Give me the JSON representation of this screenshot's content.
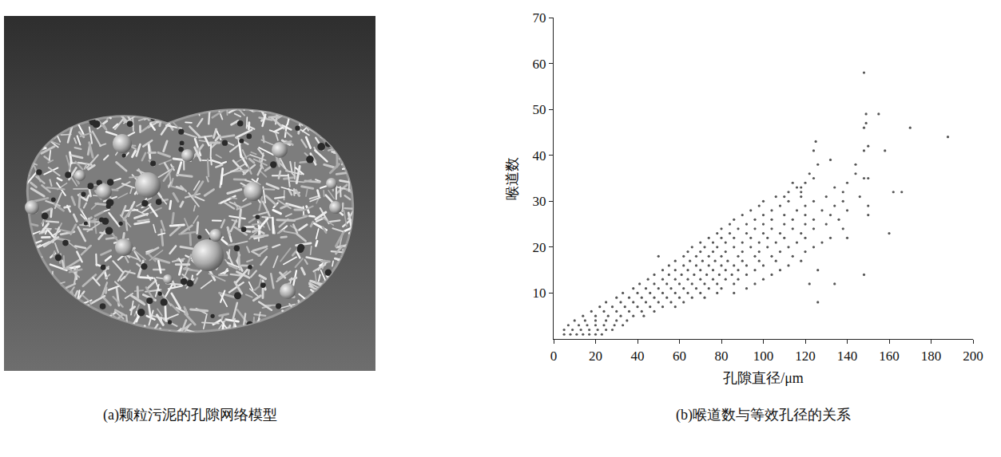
{
  "image_panel": {
    "caption": "(a)颗粒污泥的孔隙网络模型"
  },
  "chart_data": {
    "type": "scatter",
    "caption": "(b)喉道数与等效孔径的关系",
    "x_label": "孔隙直径/μm",
    "y_label": "喉道数",
    "color": "#555555",
    "marker": "dot",
    "grid": false,
    "xlim": [
      0,
      200
    ],
    "ylim": [
      0,
      70
    ],
    "xticks": [
      0,
      20,
      40,
      60,
      80,
      100,
      120,
      140,
      160,
      180,
      200
    ],
    "yticks": [
      10,
      20,
      30,
      40,
      50,
      60,
      70
    ],
    "x": [
      5,
      8,
      11,
      14,
      17,
      20,
      23,
      5,
      9,
      13,
      17,
      21,
      25,
      28,
      7,
      12,
      16,
      20,
      24,
      29,
      33,
      10,
      15,
      20,
      25,
      30,
      35,
      14,
      20,
      26,
      32,
      38,
      43,
      18,
      24,
      30,
      36,
      42,
      48,
      22,
      28,
      34,
      40,
      46,
      52,
      58,
      25,
      32,
      38,
      44,
      50,
      56,
      62,
      126,
      30,
      36,
      42,
      48,
      54,
      60,
      66,
      72,
      33,
      40,
      46,
      52,
      58,
      64,
      70,
      78,
      86,
      38,
      44,
      50,
      56,
      62,
      68,
      74,
      80,
      92,
      41,
      48,
      54,
      60,
      66,
      72,
      78,
      86,
      96,
      122,
      134,
      45,
      52,
      58,
      64,
      70,
      76,
      82,
      88,
      100,
      48,
      55,
      61,
      67,
      73,
      79,
      85,
      92,
      104,
      148,
      52,
      58,
      64,
      70,
      76,
      82,
      88,
      96,
      108,
      126,
      55,
      62,
      68,
      74,
      80,
      86,
      92,
      100,
      112,
      58,
      65,
      71,
      77,
      83,
      90,
      98,
      106,
      118,
      50,
      62,
      68,
      74,
      80,
      88,
      96,
      104,
      114,
      64,
      70,
      76,
      82,
      90,
      98,
      108,
      120,
      66,
      72,
      78,
      86,
      94,
      102,
      112,
      124,
      70,
      76,
      82,
      90,
      98,
      106,
      116,
      128,
      74,
      80,
      86,
      94,
      102,
      110,
      120,
      132,
      140,
      78,
      84,
      92,
      100,
      108,
      118,
      160,
      80,
      88,
      96,
      104,
      114,
      124,
      138,
      84,
      92,
      100,
      110,
      120,
      130,
      86,
      96,
      104,
      114,
      124,
      136,
      90,
      100,
      110,
      120,
      132,
      150,
      94,
      104,
      116,
      128,
      140,
      98,
      108,
      120,
      134,
      150,
      100,
      112,
      124,
      138,
      106,
      110,
      118,
      130,
      146,
      112,
      118,
      138,
      162,
      166,
      116,
      118,
      134,
      114,
      120,
      140,
      124,
      148,
      150,
      122,
      144,
      126,
      144,
      132,
      124,
      148,
      158,
      150,
      125,
      188,
      148,
      170,
      149,
      149,
      155,
      148
    ],
    "values": [
      1,
      1,
      1,
      1,
      1,
      1,
      1,
      2,
      2,
      2,
      2,
      2,
      2,
      2,
      3,
      3,
      3,
      3,
      3,
      3,
      3,
      4,
      4,
      4,
      4,
      4,
      4,
      5,
      5,
      5,
      5,
      5,
      5,
      6,
      6,
      6,
      6,
      6,
      6,
      7,
      7,
      7,
      7,
      7,
      7,
      7,
      8,
      8,
      8,
      8,
      8,
      8,
      8,
      8,
      9,
      9,
      9,
      9,
      9,
      9,
      9,
      9,
      10,
      10,
      10,
      10,
      10,
      10,
      10,
      10,
      10,
      11,
      11,
      11,
      11,
      11,
      11,
      11,
      11,
      11,
      12,
      12,
      12,
      12,
      12,
      12,
      12,
      12,
      12,
      12,
      12,
      13,
      13,
      13,
      13,
      13,
      13,
      13,
      13,
      13,
      14,
      14,
      14,
      14,
      14,
      14,
      14,
      14,
      14,
      14,
      15,
      15,
      15,
      15,
      15,
      15,
      15,
      15,
      15,
      15,
      16,
      16,
      16,
      16,
      16,
      16,
      16,
      16,
      16,
      17,
      17,
      17,
      17,
      17,
      17,
      17,
      17,
      17,
      18,
      18,
      18,
      18,
      18,
      18,
      18,
      18,
      18,
      19,
      19,
      19,
      19,
      19,
      19,
      19,
      19,
      20,
      20,
      20,
      20,
      20,
      20,
      20,
      20,
      21,
      21,
      21,
      21,
      21,
      21,
      21,
      21,
      22,
      22,
      22,
      22,
      22,
      22,
      22,
      22,
      22,
      23,
      23,
      23,
      23,
      23,
      23,
      23,
      24,
      24,
      24,
      24,
      24,
      24,
      24,
      25,
      25,
      25,
      25,
      25,
      25,
      26,
      26,
      26,
      26,
      26,
      26,
      27,
      27,
      27,
      27,
      27,
      27,
      28,
      28,
      28,
      28,
      28,
      29,
      29,
      29,
      29,
      29,
      30,
      30,
      30,
      30,
      31,
      31,
      31,
      31,
      31,
      32,
      32,
      32,
      32,
      32,
      33,
      33,
      33,
      34,
      34,
      34,
      35,
      35,
      35,
      36,
      36,
      38,
      38,
      39,
      41,
      41,
      41,
      42,
      43,
      44,
      46,
      46,
      47,
      49,
      49,
      58
    ]
  }
}
